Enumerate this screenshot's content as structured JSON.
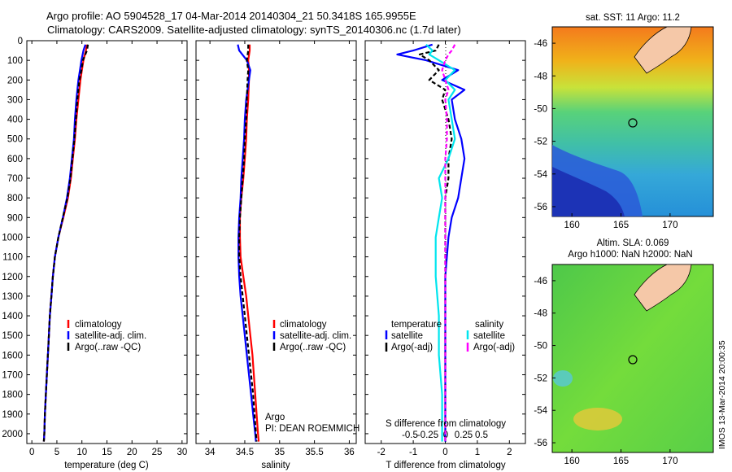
{
  "title_line1": "Argo profile: AO 5904528_17 04-Mar-2014 20140304_21 50.3418S 165.9955E",
  "title_line2": "Climatology: CARS2009. Satellite-adjusted climatology: synTS_20140306.nc (1.7d later)",
  "depth_ticks": [
    "0",
    "100",
    "200",
    "300",
    "400",
    "500",
    "600",
    "700",
    "800",
    "900",
    "1000",
    "1100",
    "1200",
    "1300",
    "1400",
    "1500",
    "1600",
    "1700",
    "1800",
    "1900",
    "2000"
  ],
  "colors": {
    "climatology": "#ff0000",
    "satellite": "#0000ff",
    "argo": "#000000",
    "sat_salinity": "#00e5ee",
    "argo_salinity": "#ff00ff",
    "land": "#f5c8a8"
  },
  "panel_temp": {
    "xlabel": "temperature (deg C)",
    "xticks": [
      "0",
      "5",
      "10",
      "15",
      "20",
      "25",
      "30"
    ],
    "legend": [
      "climatology",
      "satellite-adj. clim.",
      "Argo(..raw -QC)"
    ]
  },
  "panel_sal": {
    "xlabel": "salinity",
    "xticks": [
      "34",
      "34.5",
      "35",
      "35.5",
      "36"
    ],
    "legend": [
      "climatology",
      "satellite-adj. clim.",
      "Argo(..raw -QC)"
    ],
    "argo_label": "Argo",
    "pi_label": "PI: DEAN ROEMMICH"
  },
  "panel_diff": {
    "top_label": "S difference from climatology",
    "top_ticks": [
      "-0.5",
      "-0.25",
      "0",
      "0.25",
      "0.5"
    ],
    "xlabel": "T difference from climatology",
    "xticks": [
      "-2",
      "-1",
      "0",
      "1",
      "2"
    ],
    "legend_temp_title": "temperature",
    "legend_sal_title": "salinity",
    "legend_temp": [
      "satellite",
      "Argo(-adj)"
    ],
    "legend_sal": [
      "satellite",
      "Argo(-adj)"
    ]
  },
  "map_sst": {
    "title": "sat. SST: 11 Argo: 11.2",
    "yticks": [
      "-46",
      "-48",
      "-50",
      "-52",
      "-54",
      "-56"
    ],
    "xticks": [
      "160",
      "165",
      "170"
    ]
  },
  "map_sla": {
    "title1": "Altim. SLA: 0.069",
    "title2": "Argo h1000: NaN h2000: NaN",
    "yticks": [
      "-46",
      "-48",
      "-50",
      "-52",
      "-54",
      "-56"
    ],
    "xticks": [
      "160",
      "165",
      "170"
    ]
  },
  "side_label": "IMOS 13-Mar-2014 20:00:35",
  "chart_data": {
    "type": "line",
    "panels": [
      {
        "name": "temperature",
        "xlim": [
          -1,
          31
        ],
        "ylim": [
          2050,
          0
        ],
        "depth": [
          20,
          50,
          100,
          150,
          200,
          300,
          400,
          500,
          600,
          700,
          800,
          900,
          1000,
          1100,
          1200,
          1300,
          1400,
          1500,
          1600,
          1700,
          1800,
          1900,
          2000,
          2040
        ],
        "series": [
          {
            "name": "climatology",
            "color": "#ff0000",
            "values": [
              11.0,
              10.8,
              10.3,
              10.0,
              9.7,
              9.3,
              8.9,
              8.6,
              8.2,
              7.8,
              7.2,
              6.3,
              5.3,
              4.6,
              4.2,
              3.9,
              3.6,
              3.4,
              3.2,
              3.0,
              2.8,
              2.6,
              2.5,
              2.4
            ]
          },
          {
            "name": "satellite-adj. clim.",
            "color": "#0000ff",
            "values": [
              10.7,
              10.3,
              9.9,
              9.6,
              9.3,
              8.9,
              8.6,
              8.4,
              8.0,
              7.6,
              7.0,
              6.2,
              5.3,
              4.6,
              4.2,
              3.9,
              3.6,
              3.4,
              3.2,
              3.0,
              2.8,
              2.6,
              2.5,
              2.4
            ]
          },
          {
            "name": "Argo(..raw -QC)",
            "color": "#000000",
            "dashed": true,
            "values": [
              11.2,
              11.0,
              10.2,
              9.9,
              9.5,
              9.1,
              8.8,
              8.5,
              8.1,
              7.7,
              7.1,
              6.2,
              5.3,
              4.6,
              4.2,
              3.9,
              3.6,
              3.4,
              3.2,
              3.0,
              2.8,
              2.6,
              2.5,
              2.4
            ]
          }
        ]
      },
      {
        "name": "salinity",
        "xlim": [
          33.8,
          36.1
        ],
        "ylim": [
          2050,
          0
        ],
        "depth": [
          20,
          50,
          100,
          150,
          200,
          300,
          400,
          500,
          600,
          700,
          800,
          900,
          1000,
          1100,
          1200,
          1300,
          1400,
          1500,
          1600,
          1700,
          1800,
          1900,
          2000,
          2040
        ],
        "series": [
          {
            "name": "climatology",
            "color": "#ff0000",
            "values": [
              34.57,
              34.57,
              34.55,
              34.56,
              34.56,
              34.55,
              34.53,
              34.52,
              34.5,
              34.48,
              34.45,
              34.43,
              34.43,
              34.44,
              34.48,
              34.52,
              34.55,
              34.58,
              34.61,
              34.63,
              34.65,
              34.67,
              34.69,
              34.7
            ]
          },
          {
            "name": "satellite-adj. clim.",
            "color": "#0000ff",
            "values": [
              34.4,
              34.42,
              34.53,
              34.58,
              34.56,
              34.52,
              34.5,
              34.49,
              34.47,
              34.45,
              34.44,
              34.42,
              34.41,
              34.41,
              34.42,
              34.44,
              34.47,
              34.5,
              34.53,
              34.56,
              34.59,
              34.62,
              34.65,
              34.66
            ]
          },
          {
            "name": "Argo(..raw -QC)",
            "color": "#000000",
            "dashed": true,
            "values": [
              34.55,
              34.55,
              34.53,
              34.55,
              34.54,
              34.53,
              34.52,
              34.5,
              34.49,
              34.47,
              34.45,
              34.43,
              34.42,
              34.42,
              34.44,
              34.47,
              34.5,
              34.53,
              34.56,
              34.59,
              34.62,
              34.64,
              34.66,
              34.67
            ]
          }
        ]
      },
      {
        "name": "difference",
        "xlim": [
          -2.5,
          2.5
        ],
        "ylim": [
          2050,
          0
        ],
        "depth": [
          20,
          50,
          70,
          100,
          150,
          200,
          250,
          300,
          400,
          500,
          600,
          700,
          800,
          900,
          1000,
          1200,
          1400,
          1600,
          1800,
          2000,
          2040
        ],
        "series": [
          {
            "name": "temperature satellite",
            "color": "#0000ff",
            "values": [
              -0.4,
              -1.0,
              -1.5,
              -0.6,
              0.4,
              -0.1,
              0.6,
              0.2,
              0.3,
              0.5,
              0.6,
              0.5,
              0.4,
              0.2,
              0.1,
              0.0,
              0.0,
              0.0,
              0.0,
              0.0,
              0.0
            ]
          },
          {
            "name": "temperature Argo(-adj)",
            "color": "#000000",
            "dashed": true,
            "values": [
              -0.2,
              -0.3,
              -0.8,
              -0.5,
              -0.2,
              -0.5,
              0.0,
              -0.1,
              0.1,
              0.2,
              0.1,
              0.1,
              0.0,
              0.0,
              0.0,
              0.0,
              0.0,
              0.0,
              0.0,
              0.0,
              0.0
            ]
          },
          {
            "name": "salinity satellite",
            "color": "#00e5ee",
            "values": [
              -0.6,
              -0.4,
              -0.5,
              -0.2,
              0.3,
              0.0,
              0.3,
              0.1,
              0.2,
              0.3,
              0.1,
              -0.2,
              -0.1,
              -0.2,
              -0.3,
              -0.3,
              -0.2,
              -0.2,
              -0.1,
              -0.1,
              -0.1
            ]
          },
          {
            "name": "salinity Argo(-adj)",
            "color": "#ff00ff",
            "dashed": true,
            "values": [
              0.3,
              0.2,
              0.1,
              0.0,
              -0.1,
              0.0,
              0.1,
              0.0,
              0.05,
              0.05,
              0.0,
              0.0,
              0.0,
              0.0,
              0.0,
              0.0,
              0.0,
              0.0,
              0.0,
              0.0,
              0.0
            ]
          }
        ]
      }
    ]
  }
}
